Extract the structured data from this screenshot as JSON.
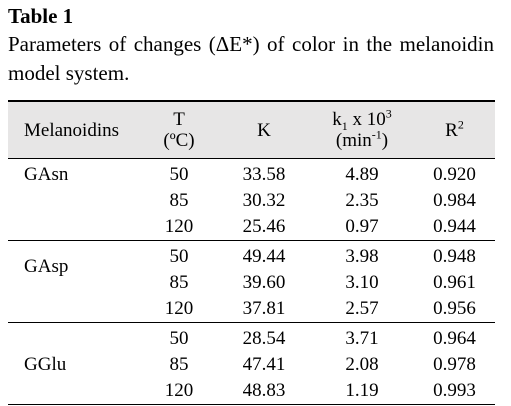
{
  "title": "Table 1",
  "caption": "Parameters of changes (ΔE*) of color in the melanoidin model system.",
  "header": {
    "melanoidins": "Melanoidins",
    "t_line1": "T",
    "t_line2": "(ºC)",
    "k": "K",
    "k1_main": "k",
    "k1_sub": "1",
    "k1_mid": " x 10",
    "k1_sup": "3",
    "k1_unit_a": "(min",
    "k1_unit_sup": "-1",
    "k1_unit_b": ")",
    "r": "R",
    "r_sup": "2"
  },
  "groups": [
    {
      "name": "GAsn",
      "rows": [
        {
          "t": "50",
          "k": "33.58",
          "k1": "4.89",
          "r2": "0.920"
        },
        {
          "t": "85",
          "k": "30.32",
          "k1": "2.35",
          "r2": "0.984"
        },
        {
          "t": "120",
          "k": "25.46",
          "k1": "0.97",
          "r2": "0.944"
        }
      ]
    },
    {
      "name": "GAsp",
      "rows": [
        {
          "t": "50",
          "k": "49.44",
          "k1": "3.98",
          "r2": "0.948"
        },
        {
          "t": "85",
          "k": "39.60",
          "k1": "3.10",
          "r2": "0.961"
        },
        {
          "t": "120",
          "k": "37.81",
          "k1": "2.57",
          "r2": "0.956"
        }
      ]
    },
    {
      "name": "GGlu",
      "rows": [
        {
          "t": "50",
          "k": "28.54",
          "k1": "3.71",
          "r2": "0.964"
        },
        {
          "t": "85",
          "k": "47.41",
          "k1": "2.08",
          "r2": "0.978"
        },
        {
          "t": "120",
          "k": "48.83",
          "k1": "1.19",
          "r2": "0.993"
        }
      ]
    }
  ],
  "colors": {
    "header_background": "#e7e6e6",
    "text": "#000000",
    "rule": "#000000"
  }
}
